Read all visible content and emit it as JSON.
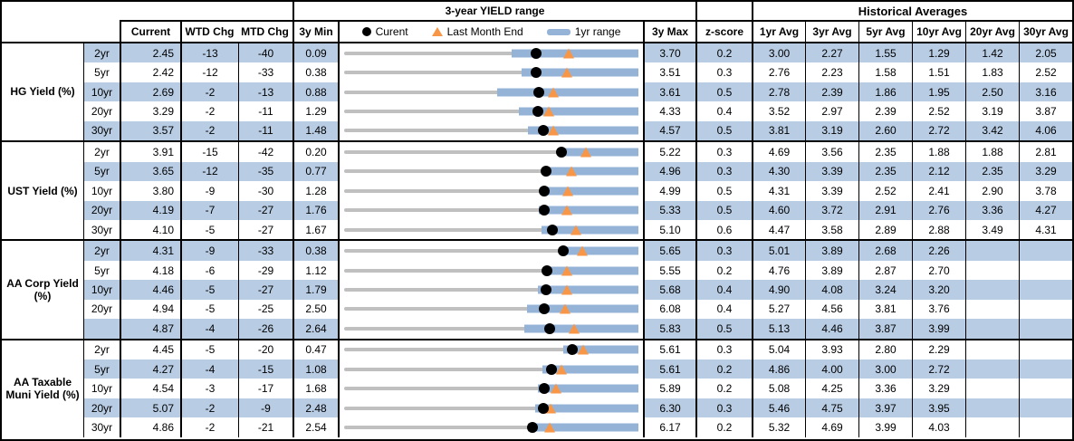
{
  "colors": {
    "band": "#b8cce4",
    "bar": "#95b3d7",
    "tri": "#f79646",
    "track": "#c0c0c0",
    "dot": "#000000"
  },
  "header": {
    "range_title": "3-year YIELD range",
    "hist_title": "Historical Averages",
    "cols": {
      "current": "Current",
      "wtd": "WTD Chg",
      "mtd": "MTD Chg",
      "min": "3y Min",
      "max": "3y Max",
      "z": "z-score"
    },
    "avg_cols": [
      "1yr Avg",
      "3yr Avg",
      "5yr Avg",
      "10yr Avg",
      "20yr Avg",
      "30yr Avg"
    ],
    "legend": [
      {
        "icon": "current-dot-icon",
        "label": "Curent"
      },
      {
        "icon": "last-month-end-triangle-icon",
        "label": "Last Month End"
      },
      {
        "icon": "1yr-range-bar-icon",
        "label": "1yr range"
      }
    ]
  },
  "chart_data": {
    "type": "table",
    "title": "3-year YIELD range",
    "embedded_chart": {
      "type": "bullet-range",
      "track": "3y min-max range",
      "bar": "1yr range",
      "dot": "Current",
      "triangle": "Last Month End",
      "axis": "each row scaled from its own 3y Min to 3y Max"
    },
    "columns": [
      "Current",
      "WTD Chg",
      "MTD Chg",
      "3y Min",
      "3y Max",
      "z-score",
      "1yr Avg",
      "3yr Avg",
      "5yr Avg",
      "10yr Avg",
      "20yr Avg",
      "30yr Avg"
    ],
    "groups": [
      {
        "label": "HG Yield (%)",
        "rows": [
          {
            "tenor": "2yr",
            "current": "2.45",
            "wtd_chg": "-13",
            "mtd_chg": "-40",
            "min_3y": "0.09",
            "max_3y": "3.70",
            "z_score": "0.2",
            "avgs": [
              "3.00",
              "2.27",
              "1.55",
              "1.29",
              "1.42",
              "2.05"
            ],
            "range_1yr": [
              2.15,
              3.7
            ],
            "last_month_end": 2.85
          },
          {
            "tenor": "5yr",
            "current": "2.42",
            "wtd_chg": "-12",
            "mtd_chg": "-33",
            "min_3y": "0.38",
            "max_3y": "3.51",
            "z_score": "0.3",
            "avgs": [
              "2.76",
              "2.23",
              "1.58",
              "1.51",
              "1.83",
              "2.52"
            ],
            "range_1yr": [
              2.27,
              3.51
            ],
            "last_month_end": 2.75
          },
          {
            "tenor": "10yr",
            "current": "2.69",
            "wtd_chg": "-2",
            "mtd_chg": "-13",
            "min_3y": "0.88",
            "max_3y": "3.61",
            "z_score": "0.5",
            "avgs": [
              "2.78",
              "2.39",
              "1.86",
              "1.95",
              "2.50",
              "3.16"
            ],
            "range_1yr": [
              2.3,
              3.61
            ],
            "last_month_end": 2.82
          },
          {
            "tenor": "20yr",
            "current": "3.29",
            "wtd_chg": "-2",
            "mtd_chg": "-11",
            "min_3y": "1.29",
            "max_3y": "4.33",
            "z_score": "0.4",
            "avgs": [
              "3.52",
              "2.97",
              "2.39",
              "2.52",
              "3.19",
              "3.87"
            ],
            "range_1yr": [
              3.1,
              4.33
            ],
            "last_month_end": 3.4
          },
          {
            "tenor": "30yr",
            "current": "3.57",
            "wtd_chg": "-2",
            "mtd_chg": "-11",
            "min_3y": "1.48",
            "max_3y": "4.57",
            "z_score": "0.5",
            "avgs": [
              "3.81",
              "3.19",
              "2.60",
              "2.72",
              "3.42",
              "4.06"
            ],
            "range_1yr": [
              3.41,
              4.57
            ],
            "last_month_end": 3.68
          }
        ]
      },
      {
        "label": "UST Yield (%)",
        "rows": [
          {
            "tenor": "2yr",
            "current": "3.91",
            "wtd_chg": "-15",
            "mtd_chg": "-42",
            "min_3y": "0.20",
            "max_3y": "5.22",
            "z_score": "0.3",
            "avgs": [
              "4.69",
              "3.56",
              "2.35",
              "1.88",
              "1.88",
              "2.81"
            ],
            "range_1yr": [
              3.9,
              5.22
            ],
            "last_month_end": 4.33
          },
          {
            "tenor": "5yr",
            "current": "3.65",
            "wtd_chg": "-12",
            "mtd_chg": "-35",
            "min_3y": "0.77",
            "max_3y": "4.96",
            "z_score": "0.3",
            "avgs": [
              "4.30",
              "3.39",
              "2.35",
              "2.12",
              "2.35",
              "3.29"
            ],
            "range_1yr": [
              3.61,
              4.96
            ],
            "last_month_end": 4.0
          },
          {
            "tenor": "10yr",
            "current": "3.80",
            "wtd_chg": "-9",
            "mtd_chg": "-30",
            "min_3y": "1.28",
            "max_3y": "4.99",
            "z_score": "0.5",
            "avgs": [
              "4.31",
              "3.39",
              "2.52",
              "2.41",
              "2.90",
              "3.78"
            ],
            "range_1yr": [
              3.78,
              4.99
            ],
            "last_month_end": 4.1
          },
          {
            "tenor": "20yr",
            "current": "4.19",
            "wtd_chg": "-7",
            "mtd_chg": "-27",
            "min_3y": "1.76",
            "max_3y": "5.33",
            "z_score": "0.5",
            "avgs": [
              "4.60",
              "3.72",
              "2.91",
              "2.76",
              "3.36",
              "4.27"
            ],
            "range_1yr": [
              4.12,
              5.33
            ],
            "last_month_end": 4.46
          },
          {
            "tenor": "30yr",
            "current": "4.10",
            "wtd_chg": "-5",
            "mtd_chg": "-27",
            "min_3y": "1.67",
            "max_3y": "5.10",
            "z_score": "0.6",
            "avgs": [
              "4.47",
              "3.58",
              "2.89",
              "2.88",
              "3.49",
              "4.31"
            ],
            "range_1yr": [
              3.97,
              5.1
            ],
            "last_month_end": 4.37
          }
        ]
      },
      {
        "label": "AA Corp Yield (%)",
        "rows": [
          {
            "tenor": "2yr",
            "current": "4.31",
            "wtd_chg": "-9",
            "mtd_chg": "-33",
            "min_3y": "0.38",
            "max_3y": "5.65",
            "z_score": "0.3",
            "avgs": [
              "5.01",
              "3.89",
              "2.68",
              "2.26",
              "",
              ""
            ],
            "range_1yr": [
              4.3,
              5.65
            ],
            "last_month_end": 4.64
          },
          {
            "tenor": "5yr",
            "current": "4.18",
            "wtd_chg": "-6",
            "mtd_chg": "-29",
            "min_3y": "1.12",
            "max_3y": "5.55",
            "z_score": "0.2",
            "avgs": [
              "4.76",
              "3.89",
              "2.87",
              "2.70",
              "",
              ""
            ],
            "range_1yr": [
              4.15,
              5.55
            ],
            "last_month_end": 4.47
          },
          {
            "tenor": "10yr",
            "current": "4.46",
            "wtd_chg": "-5",
            "mtd_chg": "-27",
            "min_3y": "1.79",
            "max_3y": "5.68",
            "z_score": "0.4",
            "avgs": [
              "4.90",
              "4.08",
              "3.24",
              "3.20",
              "",
              ""
            ],
            "range_1yr": [
              4.35,
              5.68
            ],
            "last_month_end": 4.73
          },
          {
            "tenor": "20yr",
            "current": "4.94",
            "wtd_chg": "-5",
            "mtd_chg": "-25",
            "min_3y": "2.50",
            "max_3y": "6.08",
            "z_score": "0.4",
            "avgs": [
              "5.27",
              "4.56",
              "3.81",
              "3.76",
              "",
              ""
            ],
            "range_1yr": [
              4.73,
              6.08
            ],
            "last_month_end": 5.19
          },
          {
            "tenor": "",
            "current": "4.87",
            "wtd_chg": "-4",
            "mtd_chg": "-26",
            "min_3y": "2.64",
            "max_3y": "5.83",
            "z_score": "0.5",
            "avgs": [
              "5.13",
              "4.46",
              "3.87",
              "3.99",
              "",
              ""
            ],
            "range_1yr": [
              4.59,
              5.83
            ],
            "last_month_end": 5.13
          }
        ]
      },
      {
        "label": "AA Taxable Muni Yield (%)",
        "rows": [
          {
            "tenor": "2yr",
            "current": "4.45",
            "wtd_chg": "-5",
            "mtd_chg": "-20",
            "min_3y": "0.47",
            "max_3y": "5.61",
            "z_score": "0.3",
            "avgs": [
              "5.04",
              "3.93",
              "2.80",
              "2.29",
              "",
              ""
            ],
            "range_1yr": [
              4.3,
              5.61
            ],
            "last_month_end": 4.65
          },
          {
            "tenor": "5yr",
            "current": "4.27",
            "wtd_chg": "-4",
            "mtd_chg": "-15",
            "min_3y": "1.08",
            "max_3y": "5.61",
            "z_score": "0.2",
            "avgs": [
              "4.86",
              "4.00",
              "3.00",
              "2.72",
              "",
              ""
            ],
            "range_1yr": [
              4.13,
              5.61
            ],
            "last_month_end": 4.42
          },
          {
            "tenor": "10yr",
            "current": "4.54",
            "wtd_chg": "-3",
            "mtd_chg": "-17",
            "min_3y": "1.68",
            "max_3y": "5.89",
            "z_score": "0.2",
            "avgs": [
              "5.08",
              "4.25",
              "3.36",
              "3.29",
              "",
              ""
            ],
            "range_1yr": [
              4.45,
              5.89
            ],
            "last_month_end": 4.71
          },
          {
            "tenor": "20yr",
            "current": "5.07",
            "wtd_chg": "-2",
            "mtd_chg": "-9",
            "min_3y": "2.48",
            "max_3y": "6.30",
            "z_score": "0.3",
            "avgs": [
              "5.46",
              "4.75",
              "3.97",
              "3.95",
              "",
              ""
            ],
            "range_1yr": [
              4.96,
              6.3
            ],
            "last_month_end": 5.16
          },
          {
            "tenor": "30yr",
            "current": "4.86",
            "wtd_chg": "-2",
            "mtd_chg": "-21",
            "min_3y": "2.54",
            "max_3y": "6.17",
            "z_score": "0.2",
            "avgs": [
              "5.32",
              "4.69",
              "3.99",
              "4.03",
              "",
              ""
            ],
            "range_1yr": [
              4.81,
              6.17
            ],
            "last_month_end": 5.07
          }
        ]
      }
    ]
  }
}
